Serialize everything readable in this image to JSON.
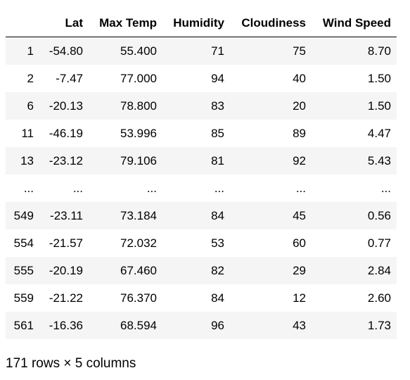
{
  "table": {
    "index_header": "",
    "columns": [
      "Lat",
      "Max Temp",
      "Humidity",
      "Cloudiness",
      "Wind Speed"
    ],
    "rows": [
      {
        "index": "1",
        "cells": [
          "-54.80",
          "55.400",
          "71",
          "75",
          "8.70"
        ]
      },
      {
        "index": "2",
        "cells": [
          "-7.47",
          "77.000",
          "94",
          "40",
          "1.50"
        ]
      },
      {
        "index": "6",
        "cells": [
          "-20.13",
          "78.800",
          "83",
          "20",
          "1.50"
        ]
      },
      {
        "index": "11",
        "cells": [
          "-46.19",
          "53.996",
          "85",
          "89",
          "4.47"
        ]
      },
      {
        "index": "13",
        "cells": [
          "-23.12",
          "79.106",
          "81",
          "92",
          "5.43"
        ]
      },
      {
        "index": "...",
        "cells": [
          "...",
          "...",
          "...",
          "...",
          "..."
        ]
      },
      {
        "index": "549",
        "cells": [
          "-23.11",
          "73.184",
          "84",
          "45",
          "0.56"
        ]
      },
      {
        "index": "554",
        "cells": [
          "-21.57",
          "72.032",
          "53",
          "60",
          "0.77"
        ]
      },
      {
        "index": "555",
        "cells": [
          "-20.19",
          "67.460",
          "82",
          "29",
          "2.84"
        ]
      },
      {
        "index": "559",
        "cells": [
          "-21.22",
          "76.370",
          "84",
          "12",
          "2.60"
        ]
      },
      {
        "index": "561",
        "cells": [
          "-16.36",
          "68.594",
          "96",
          "43",
          "1.73"
        ]
      }
    ]
  },
  "shape_text": "171 rows × 5 columns"
}
